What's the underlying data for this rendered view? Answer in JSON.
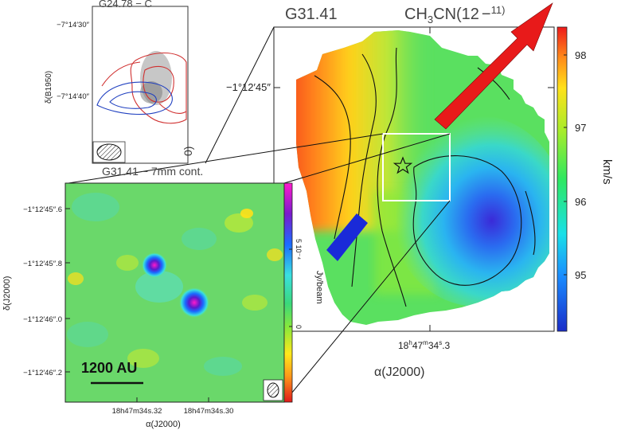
{
  "chart_data": [
    {
      "type": "heatmap",
      "title": "G31.41 CH3CN(12-11)",
      "title_main": "G31.41",
      "title_molecule": "CH",
      "title_sub3": "3",
      "title_molecule2": "CN(12",
      "title_dash": "−",
      "title_tail": "11)",
      "xlabel": "α(J2000)",
      "ylabel": "",
      "x_tick": "18h47m34s.3",
      "x_tick_parts": {
        "h": "18",
        "hs": "h",
        "m": "47",
        "ms": "m",
        "s": "34",
        "ss": "s",
        "f": ".3"
      },
      "y_tick": "−1°12′45″",
      "colorbar": {
        "label": "km/s",
        "ticks": [
          95,
          96,
          97,
          98
        ],
        "range": [
          94.2,
          98.4
        ]
      },
      "markers": [
        {
          "symbol": "star",
          "x": "18h47m34s.3",
          "y": "−1°12′45″"
        }
      ],
      "arrows": [
        {
          "color": "#e01010"
        },
        {
          "color": "#1030d0"
        }
      ],
      "zoom_box": "white"
    },
    {
      "type": "heatmap",
      "title": "G31.41 − 7mm cont.",
      "xlabel": "α(J2000)",
      "ylabel": "δ(J2000)",
      "x_ticks": [
        "18h47m34s.32",
        "18h47m34s.30"
      ],
      "x_tick_parts": [
        {
          "h": "18",
          "m": "47",
          "s": "34",
          "f": ".32"
        },
        {
          "h": "18",
          "m": "47",
          "s": "34",
          "f": ".30"
        }
      ],
      "y_ticks": [
        "−1°12′45″.6",
        "−1°12′45″.8",
        "−1°12′46″.0",
        "−1°12′46″.2"
      ],
      "colorbar": {
        "label": "Jy/beam",
        "ticks": [
          "0",
          "5 10⁻⁴"
        ],
        "tick_values": [
          0,
          0.0005
        ]
      },
      "scale_bar": "1200 AU",
      "sources": [
        {
          "peak": "compact"
        },
        {
          "peak": "compact"
        }
      ]
    },
    {
      "type": "heatmap",
      "title": "G24.78 − C",
      "ylabel": "δ(B1950)",
      "y_ticks": [
        "−7°14′30″",
        "−7°14′40″"
      ],
      "contours": [
        {
          "color": "#d03030"
        },
        {
          "color": "#2040c0"
        }
      ]
    }
  ],
  "labels": {
    "main_title_left": "G31.41",
    "main_title_right_a": "CH",
    "main_title_right_sub": "3",
    "main_title_right_b": "CN(12",
    "main_title_right_c": "−",
    "main_title_right_d": "11)",
    "main_ytick": "−1°12′45″",
    "main_xtick_a": "18",
    "main_xtick_b": "h",
    "main_xtick_c": "47",
    "main_xtick_d": "m",
    "main_xtick_e": "34",
    "main_xtick_f": "s",
    "main_xtick_g": ".3",
    "main_xlabel": "α(J2000)",
    "main_cbar_label": "km/s",
    "main_cbar_t1": "98",
    "main_cbar_t2": "97",
    "main_cbar_t3": "96",
    "main_cbar_t4": "95",
    "inset_title": "G31.41 − 7mm cont.",
    "inset_y1": "−1°12′45″.6",
    "inset_y2": "−1°12′45″.8",
    "inset_y3": "−1°12′46″.0",
    "inset_y4": "−1°12′46″.2",
    "inset_ylabel": "δ(J2000)",
    "inset_x1": "18h47m34s.32",
    "inset_x2": "18h47m34s.30",
    "inset_xlabel": "α(J2000)",
    "inset_cbar_label": "Jy/beam",
    "inset_cbar_t1": "5 10⁻⁴",
    "inset_cbar_t0": "0",
    "scale_bar": "1200 AU",
    "g24_title": "G24.78 − C",
    "g24_y1": "−7°14′30″",
    "g24_y2": "−7°14′40″",
    "g24_ylabel": "δ(B1950)",
    "stray_paren": "0)"
  }
}
